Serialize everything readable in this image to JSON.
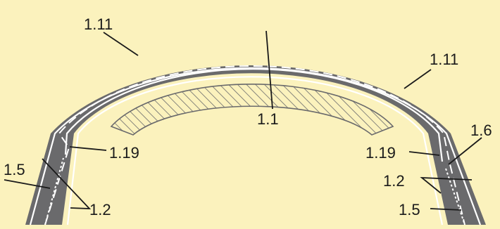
{
  "diagram": {
    "colors": {
      "background": "#fbf2bd",
      "road": "#6a6a6c",
      "marking": "#ffffff",
      "hatch_fill": "#fbf2bd",
      "hatch_stroke": "#6a6a6c",
      "text": "#1a1a1a"
    },
    "callouts": {
      "top_left_1_11": "1.11",
      "top_right_1_11": "1.11",
      "center_1_1": "1.1",
      "left_1_19": "1.19",
      "right_1_19": "1.19",
      "left_1_5": "1.5",
      "right_1_5": "1.5",
      "left_1_2": "1.2",
      "right_1_2": "1.2",
      "right_1_6": "1.6"
    }
  }
}
